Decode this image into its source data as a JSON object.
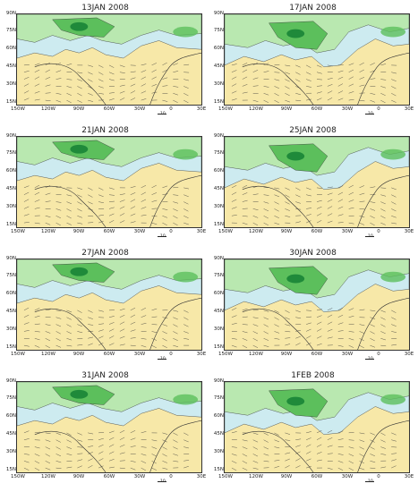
{
  "panels": [
    {
      "title": "13JAN 2008",
      "vector_ref": "10"
    },
    {
      "title": "17JAN 2008",
      "vector_ref": "10"
    },
    {
      "title": "21JAN 2008",
      "vector_ref": "10"
    },
    {
      "title": "25JAN 2008",
      "vector_ref": "10"
    },
    {
      "title": "27JAN 2008",
      "vector_ref": "10"
    },
    {
      "title": "30JAN 2008",
      "vector_ref": "10"
    },
    {
      "title": "31JAN 2008",
      "vector_ref": "10"
    },
    {
      "title": "1FEB 2008",
      "vector_ref": "10"
    }
  ],
  "lat_labels": [
    "90N",
    "75N",
    "60N",
    "45N",
    "30N",
    "15N"
  ],
  "lon_labels": [
    "150W",
    "120W",
    "90W",
    "60W",
    "30W",
    "0",
    "30E"
  ],
  "colors": {
    "land_background": "#f7e8a8",
    "shade_light_blue": "#cdebf0",
    "shade_light_green": "#b9e8b0",
    "shade_mid_green": "#5cbf5c",
    "shade_dark_green": "#1f8a3a",
    "coast_and_vectors": "#333333"
  }
}
